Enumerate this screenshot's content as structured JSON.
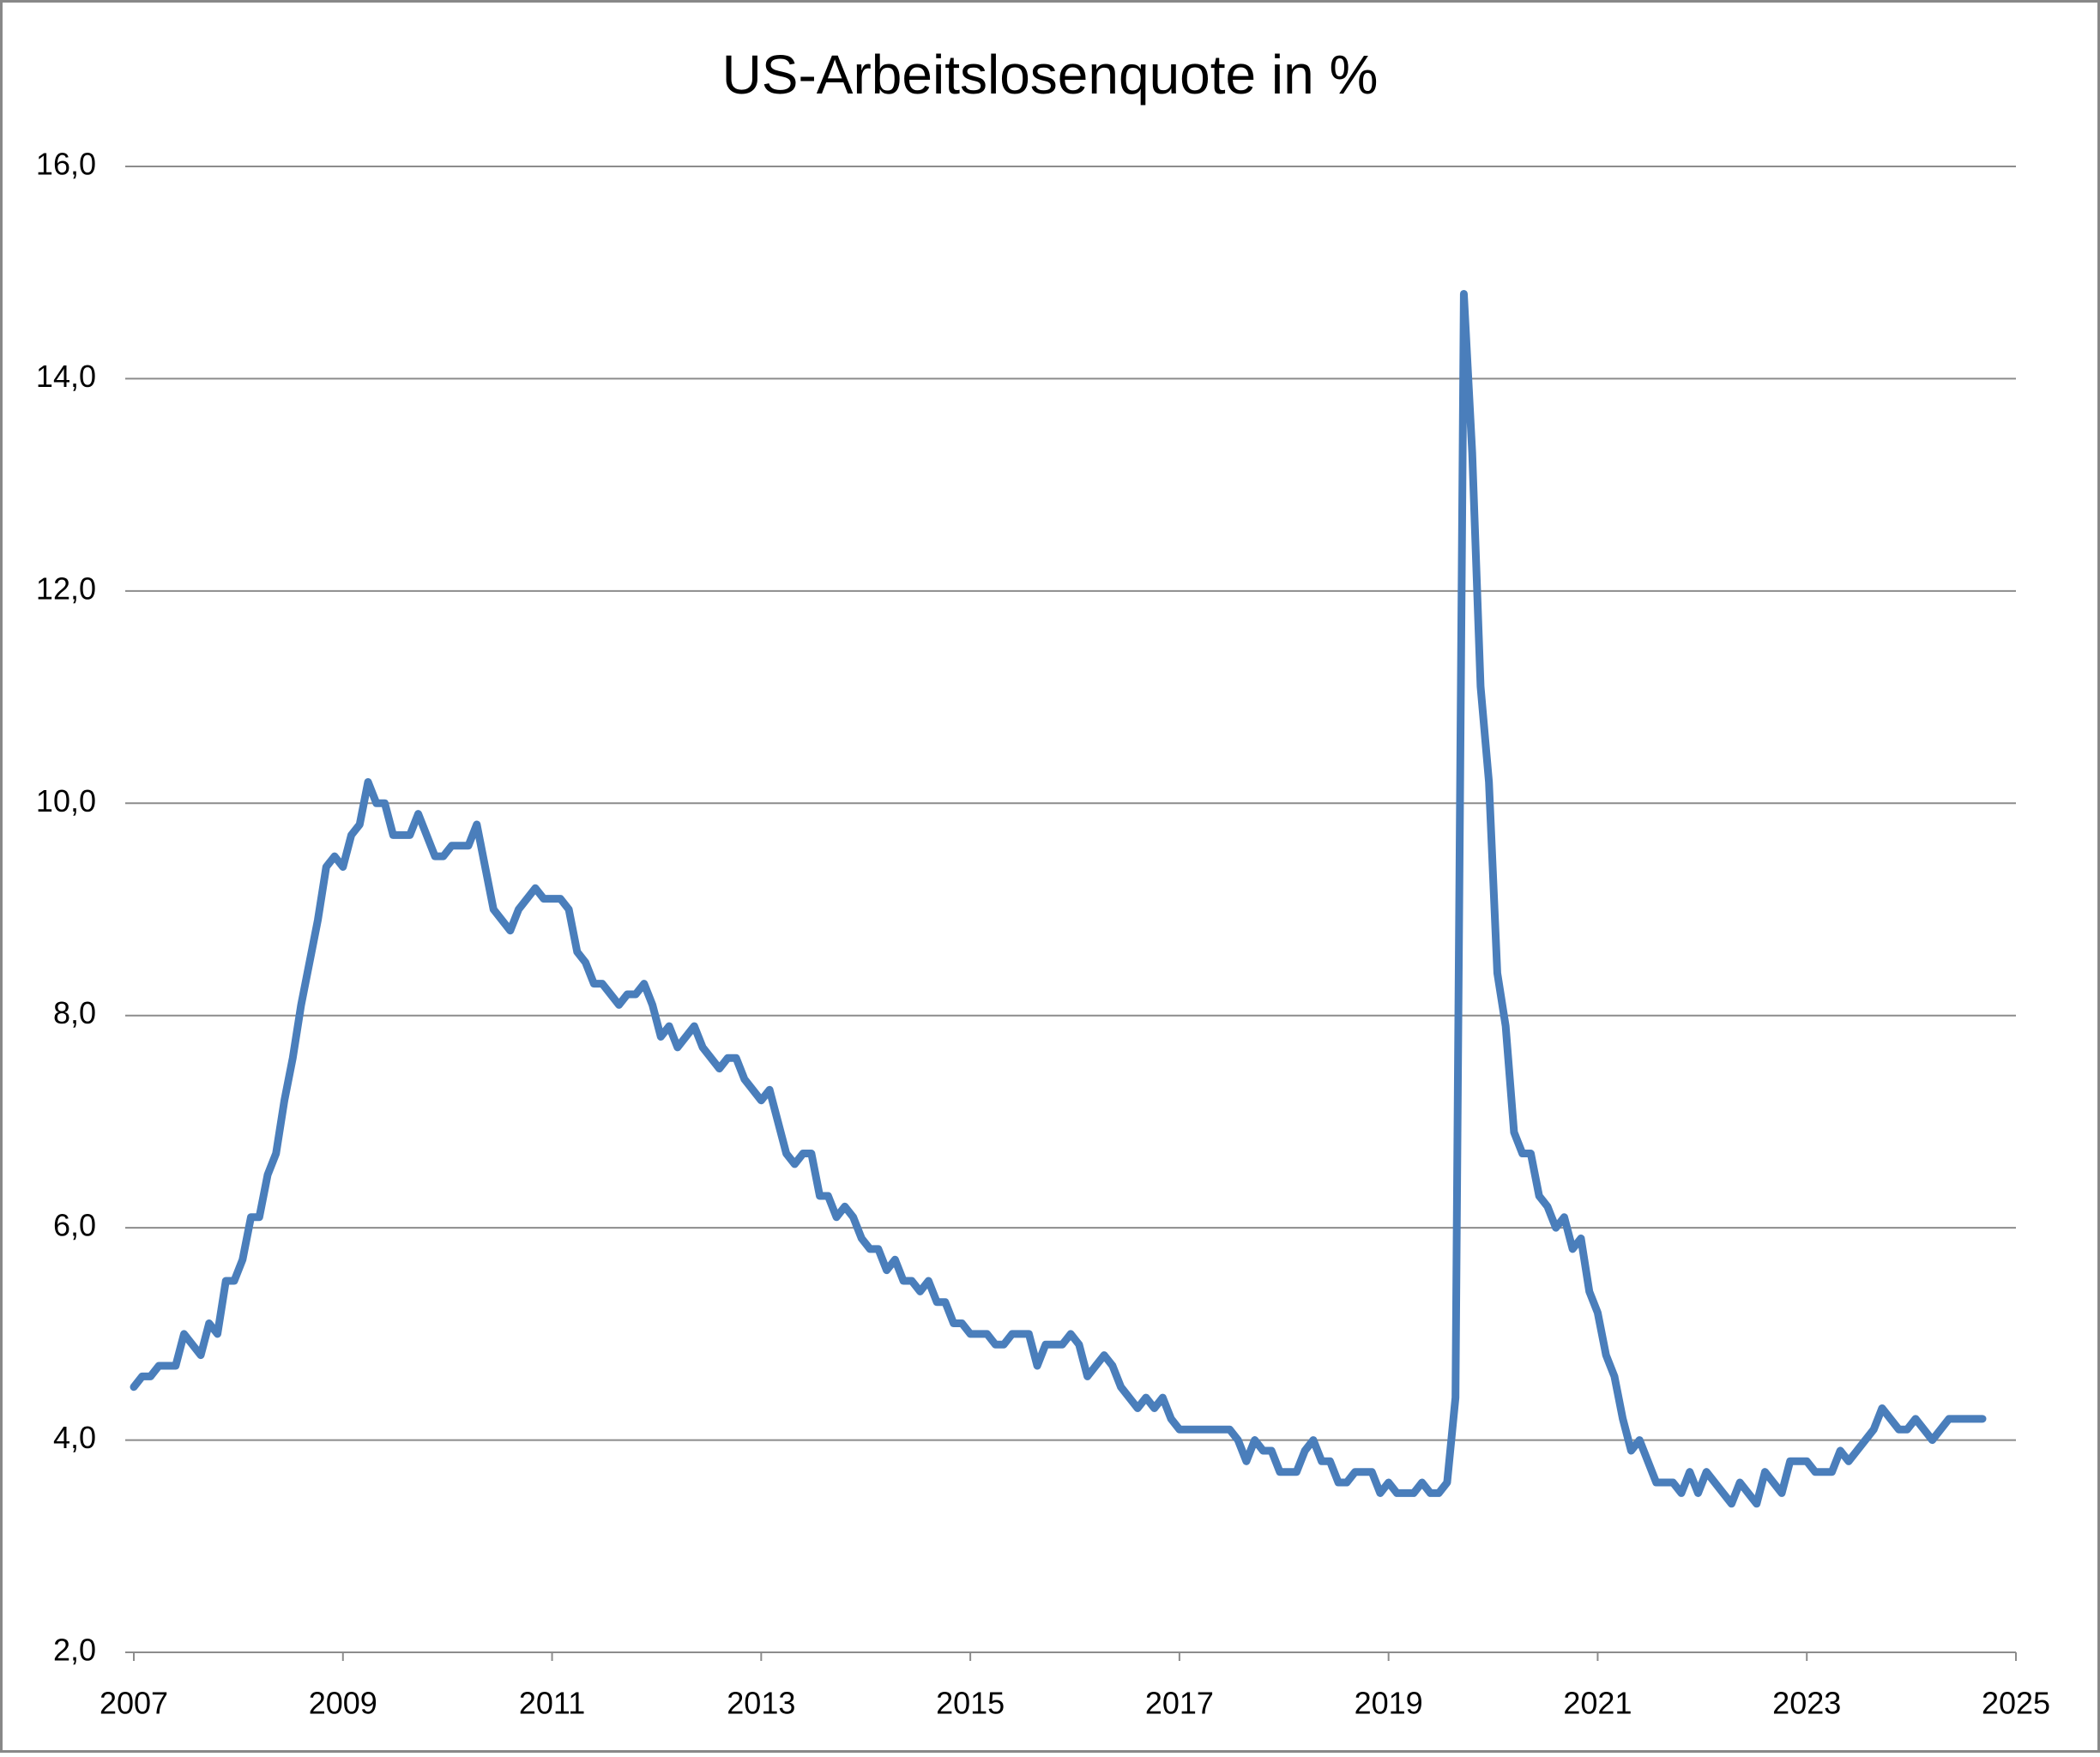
{
  "chart_data": {
    "type": "line",
    "title": "US-Arbeitslosenquote in %",
    "color": "#4a7ebb",
    "grid": true,
    "xlim": [
      2007,
      2025
    ],
    "xticks": [
      2007,
      2009,
      2011,
      2013,
      2015,
      2017,
      2019,
      2021,
      2023,
      2025
    ],
    "ylim": [
      2,
      16
    ],
    "yticks": [
      {
        "value": 2,
        "label": "2,0"
      },
      {
        "value": 4,
        "label": "4,0"
      },
      {
        "value": 6,
        "label": "6,0"
      },
      {
        "value": 8,
        "label": "8,0"
      },
      {
        "value": 10,
        "label": "10,0"
      },
      {
        "value": 12,
        "label": "12,0"
      },
      {
        "value": 14,
        "label": "14,0"
      },
      {
        "value": 16,
        "label": "16,0"
      }
    ],
    "x": [
      2007.0,
      2007.08,
      2007.16,
      2007.24,
      2007.32,
      2007.4,
      2007.48,
      2007.56,
      2007.64,
      2007.72,
      2007.8,
      2007.88,
      2007.96,
      2008.04,
      2008.12,
      2008.2,
      2008.28,
      2008.36,
      2008.44,
      2008.52,
      2008.6,
      2008.68,
      2008.76,
      2008.84,
      2008.92,
      2009.0,
      2009.08,
      2009.16,
      2009.24,
      2009.32,
      2009.4,
      2009.48,
      2009.56,
      2009.64,
      2009.72,
      2009.8,
      2009.88,
      2009.96,
      2010.04,
      2010.12,
      2010.2,
      2010.28,
      2010.36,
      2010.44,
      2010.52,
      2010.6,
      2010.68,
      2010.76,
      2010.84,
      2010.92,
      2011.0,
      2011.08,
      2011.16,
      2011.24,
      2011.32,
      2011.4,
      2011.48,
      2011.56,
      2011.64,
      2011.72,
      2011.8,
      2011.88,
      2011.96,
      2012.04,
      2012.12,
      2012.2,
      2012.28,
      2012.36,
      2012.44,
      2012.52,
      2012.6,
      2012.68,
      2012.76,
      2012.84,
      2012.92,
      2013.0,
      2013.08,
      2013.16,
      2013.24,
      2013.32,
      2013.4,
      2013.48,
      2013.56,
      2013.64,
      2013.72,
      2013.8,
      2013.88,
      2013.96,
      2014.04,
      2014.12,
      2014.2,
      2014.28,
      2014.36,
      2014.44,
      2014.52,
      2014.6,
      2014.68,
      2014.76,
      2014.84,
      2014.92,
      2015.0,
      2015.08,
      2015.16,
      2015.24,
      2015.32,
      2015.4,
      2015.48,
      2015.56,
      2015.64,
      2015.72,
      2015.8,
      2015.88,
      2015.96,
      2016.04,
      2016.12,
      2016.2,
      2016.28,
      2016.36,
      2016.44,
      2016.52,
      2016.6,
      2016.68,
      2016.76,
      2016.84,
      2016.92,
      2017.0,
      2017.08,
      2017.16,
      2017.24,
      2017.32,
      2017.4,
      2017.48,
      2017.56,
      2017.64,
      2017.72,
      2017.8,
      2017.88,
      2017.96,
      2018.04,
      2018.12,
      2018.2,
      2018.28,
      2018.36,
      2018.44,
      2018.52,
      2018.6,
      2018.68,
      2018.76,
      2018.84,
      2018.92,
      2019.0,
      2019.08,
      2019.16,
      2019.24,
      2019.32,
      2019.4,
      2019.48,
      2019.56,
      2019.64,
      2019.72,
      2019.8,
      2019.88,
      2019.96,
      2020.04,
      2020.12,
      2020.2,
      2020.28,
      2020.36,
      2020.44,
      2020.52,
      2020.6,
      2020.68,
      2020.76,
      2020.84,
      2020.92,
      2021.0,
      2021.08,
      2021.16,
      2021.24,
      2021.32,
      2021.4,
      2021.48,
      2021.56,
      2021.64,
      2021.72,
      2021.8,
      2021.88,
      2021.96,
      2022.04,
      2022.12,
      2022.2,
      2022.28,
      2022.36,
      2022.44,
      2022.52,
      2022.6,
      2022.68,
      2022.76,
      2022.84,
      2022.92,
      2023.0,
      2023.08,
      2023.16,
      2023.24,
      2023.32,
      2023.4,
      2023.48,
      2023.56,
      2023.64,
      2023.72,
      2023.8,
      2023.88,
      2023.96,
      2024.04,
      2024.12,
      2024.2,
      2024.28,
      2024.36,
      2024.44,
      2024.52,
      2024.6,
      2024.68
    ],
    "values": [
      4.5,
      4.6,
      4.6,
      4.7,
      4.7,
      4.7,
      5.0,
      4.9,
      4.8,
      5.1,
      5.0,
      5.5,
      5.5,
      5.7,
      6.1,
      6.1,
      6.5,
      6.7,
      7.2,
      7.6,
      8.1,
      8.5,
      8.9,
      9.4,
      9.5,
      9.4,
      9.7,
      9.8,
      10.2,
      10.0,
      10.0,
      9.7,
      9.7,
      9.7,
      9.9,
      9.7,
      9.5,
      9.5,
      9.6,
      9.6,
      9.6,
      9.8,
      9.4,
      9.0,
      8.9,
      8.8,
      9.0,
      9.1,
      9.2,
      9.1,
      9.1,
      9.1,
      9.0,
      8.6,
      8.5,
      8.3,
      8.3,
      8.2,
      8.1,
      8.2,
      8.2,
      8.3,
      8.1,
      7.8,
      7.9,
      7.7,
      7.8,
      7.9,
      7.7,
      7.6,
      7.5,
      7.6,
      7.6,
      7.4,
      7.3,
      7.2,
      7.3,
      7.0,
      6.7,
      6.6,
      6.7,
      6.7,
      6.3,
      6.3,
      6.1,
      6.2,
      6.1,
      5.9,
      5.8,
      5.8,
      5.6,
      5.7,
      5.5,
      5.5,
      5.4,
      5.5,
      5.3,
      5.3,
      5.1,
      5.1,
      5.0,
      5.0,
      5.0,
      4.9,
      4.9,
      5.0,
      5.0,
      5.0,
      4.7,
      4.9,
      4.9,
      4.9,
      5.0,
      4.9,
      4.6,
      4.7,
      4.8,
      4.7,
      4.5,
      4.4,
      4.3,
      4.4,
      4.3,
      4.4,
      4.2,
      4.1,
      4.1,
      4.1,
      4.1,
      4.1,
      4.1,
      4.1,
      4.0,
      3.8,
      4.0,
      3.9,
      3.9,
      3.7,
      3.7,
      3.7,
      3.9,
      4.0,
      3.8,
      3.8,
      3.6,
      3.6,
      3.7,
      3.7,
      3.7,
      3.5,
      3.6,
      3.5,
      3.5,
      3.5,
      3.6,
      3.5,
      3.5,
      3.6,
      4.4,
      14.8,
      13.3,
      11.1,
      10.2,
      8.4,
      7.9,
      6.9,
      6.7,
      6.7,
      6.3,
      6.2,
      6.0,
      6.1,
      5.8,
      5.9,
      5.4,
      5.2,
      4.8,
      4.6,
      4.2,
      3.9,
      4.0,
      3.8,
      3.6,
      3.6,
      3.6,
      3.5,
      3.7,
      3.5,
      3.7,
      3.6,
      3.5,
      3.4,
      3.6,
      3.5,
      3.4,
      3.7,
      3.6,
      3.5,
      3.8,
      3.8,
      3.8,
      3.7,
      3.7,
      3.7,
      3.9,
      3.8,
      3.9,
      4.0,
      4.1,
      4.3,
      4.2,
      4.1,
      4.1,
      4.2,
      4.1,
      4.0,
      4.1,
      4.2,
      4.2,
      4.2,
      4.2,
      4.2
    ]
  }
}
